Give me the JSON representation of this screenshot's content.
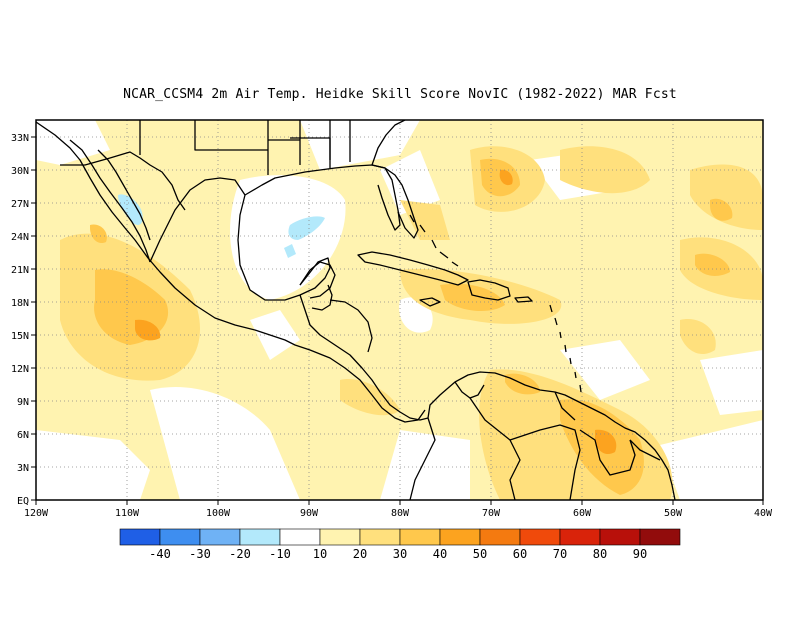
{
  "title": "NCAR_CCSM4  2m Air Temp. Heidke Skill Score NovIC (1982-2022) MAR Fcst",
  "lon_ticks": [
    "120W",
    "110W",
    "100W",
    "90W",
    "80W",
    "70W",
    "60W",
    "50W",
    "40W"
  ],
  "lat_ticks": [
    "EQ",
    "3N",
    "6N",
    "9N",
    "12N",
    "15N",
    "18N",
    "21N",
    "24N",
    "27N",
    "30N",
    "33N"
  ],
  "colorbar": {
    "colors": [
      "#1f5fe6",
      "#3e8ef0",
      "#6fb2f5",
      "#b3e9fb",
      "#ffffff",
      "#fff3b0",
      "#ffe07d",
      "#ffc84c",
      "#fca31f",
      "#f47a10",
      "#f04a0b",
      "#d9230a",
      "#b8100a",
      "#920c0c"
    ],
    "labels": [
      "-40",
      "-30",
      "-20",
      "-10",
      "10",
      "20",
      "30",
      "40",
      "50",
      "60",
      "70",
      "80",
      "90"
    ]
  },
  "map": {
    "region": "Caribbean / Central America / NW South America",
    "background": "#ffffff",
    "coast_color": "#000000"
  }
}
